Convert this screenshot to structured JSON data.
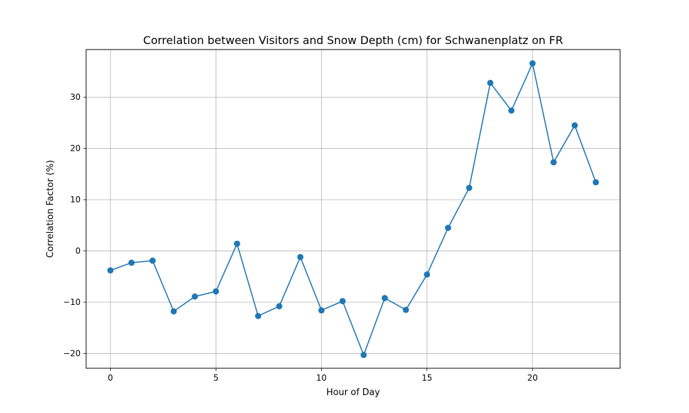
{
  "chart_data": {
    "type": "line",
    "title": "Correlation between Visitors and Snow Depth (cm) for Schwanenplatz on FR",
    "xlabel": "Hour of Day",
    "ylabel": "Correlation Factor (%)",
    "xlim": [
      -1.15,
      24.15
    ],
    "ylim": [
      -22.9,
      39.3
    ],
    "xticks": [
      0,
      5,
      10,
      15,
      20
    ],
    "yticks": [
      -20,
      -10,
      0,
      10,
      20,
      30
    ],
    "grid": true,
    "color": "#1f77b4",
    "series": [
      {
        "x": [
          0,
          1,
          2,
          3,
          4,
          5,
          6,
          7,
          8,
          9,
          10,
          11,
          12,
          13,
          14,
          15,
          16,
          17,
          18,
          19,
          20,
          21,
          22,
          23
        ],
        "y": [
          -3.8,
          -2.3,
          -1.9,
          -11.8,
          -8.9,
          -7.9,
          1.4,
          -12.7,
          -10.8,
          -1.2,
          -11.6,
          -9.8,
          -20.3,
          -9.2,
          -11.5,
          -4.6,
          4.5,
          12.3,
          32.8,
          27.4,
          36.6,
          17.3,
          24.5,
          13.4
        ]
      }
    ]
  }
}
